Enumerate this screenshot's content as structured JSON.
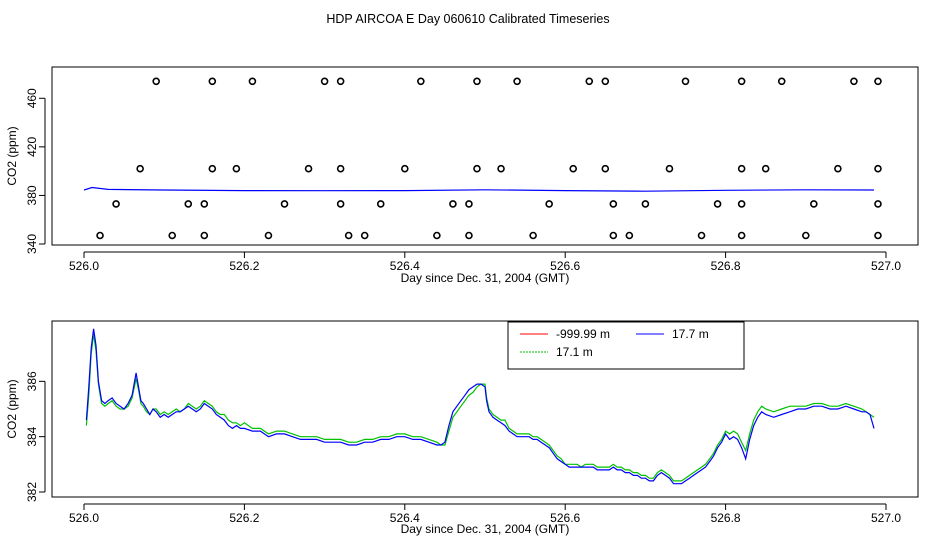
{
  "title": "HDP AIRCOA E  Day 060610  Calibrated Timeseries",
  "colors": {
    "red": "#ff0000",
    "green": "#00c000",
    "blue": "#0000ff",
    "axis": "#000000"
  },
  "chart_data": [
    {
      "type": "scatter",
      "xlabel": "Day since Dec. 31, 2004 (GMT)",
      "ylabel": "CO2 (ppm)",
      "xlim": [
        526.0,
        527.0
      ],
      "ylim": [
        340,
        480
      ],
      "xticks": [
        "526.0",
        "526.2",
        "526.4",
        "526.6",
        "526.8",
        "527.0"
      ],
      "yticks": [
        "340",
        "380",
        "420",
        "460"
      ],
      "grid": false,
      "series": [
        {
          "marker": "open-circle",
          "points": [
            [
              526.09,
              474
            ],
            [
              526.16,
              474
            ],
            [
              526.21,
              474
            ],
            [
              526.3,
              474
            ],
            [
              526.32,
              474
            ],
            [
              526.42,
              474
            ],
            [
              526.49,
              474
            ],
            [
              526.54,
              474
            ],
            [
              526.63,
              474
            ],
            [
              526.65,
              474
            ],
            [
              526.75,
              474
            ],
            [
              526.82,
              474
            ],
            [
              526.87,
              474
            ],
            [
              526.96,
              474
            ],
            [
              526.99,
              474
            ],
            [
              526.07,
              402
            ],
            [
              526.16,
              402
            ],
            [
              526.19,
              402
            ],
            [
              526.28,
              402
            ],
            [
              526.32,
              402
            ],
            [
              526.4,
              402
            ],
            [
              526.49,
              402
            ],
            [
              526.52,
              402
            ],
            [
              526.61,
              402
            ],
            [
              526.65,
              402
            ],
            [
              526.73,
              402
            ],
            [
              526.82,
              402
            ],
            [
              526.85,
              402
            ],
            [
              526.94,
              402
            ],
            [
              526.99,
              402
            ],
            [
              526.04,
              373
            ],
            [
              526.13,
              373
            ],
            [
              526.15,
              373
            ],
            [
              526.25,
              373
            ],
            [
              526.32,
              373
            ],
            [
              526.37,
              373
            ],
            [
              526.46,
              373
            ],
            [
              526.48,
              373
            ],
            [
              526.58,
              373
            ],
            [
              526.66,
              373
            ],
            [
              526.7,
              373
            ],
            [
              526.79,
              373
            ],
            [
              526.82,
              373
            ],
            [
              526.91,
              373
            ],
            [
              526.99,
              373
            ],
            [
              526.02,
              347
            ],
            [
              526.11,
              347
            ],
            [
              526.15,
              347
            ],
            [
              526.23,
              347
            ],
            [
              526.33,
              347
            ],
            [
              526.35,
              347
            ],
            [
              526.44,
              347
            ],
            [
              526.48,
              347
            ],
            [
              526.56,
              347
            ],
            [
              526.66,
              347
            ],
            [
              526.68,
              347
            ],
            [
              526.77,
              347
            ],
            [
              526.82,
              347
            ],
            [
              526.9,
              347
            ],
            [
              526.99,
              347
            ]
          ]
        },
        {
          "marker": "line",
          "color": "blue",
          "x": [
            526.0,
            526.01,
            526.03,
            526.1,
            526.2,
            526.3,
            526.4,
            526.5,
            526.6,
            526.7,
            526.8,
            526.9,
            526.985
          ],
          "y": [
            384.5,
            386.5,
            385.0,
            384.5,
            384.0,
            383.9,
            384.0,
            384.6,
            384.0,
            383.5,
            384.2,
            384.6,
            384.5
          ]
        }
      ]
    },
    {
      "type": "line",
      "xlabel": "Day since Dec. 31, 2004 (GMT)",
      "ylabel": "CO2 (ppm)",
      "xlim": [
        526.0,
        527.0
      ],
      "ylim": [
        382,
        388
      ],
      "xticks": [
        "526.0",
        "526.2",
        "526.4",
        "526.6",
        "526.8",
        "527.0"
      ],
      "yticks": [
        "382",
        "384",
        "386"
      ],
      "grid": false,
      "legend_position": "top-right",
      "legend": [
        {
          "label": "-999.99 m",
          "color": "red"
        },
        {
          "label": "17.7 m",
          "color": "blue"
        },
        {
          "label": "17.1 m",
          "color": "green"
        }
      ],
      "series": [
        {
          "name": "17.7 m",
          "color": "blue",
          "x": [
            526.003,
            526.006,
            526.009,
            526.012,
            526.015,
            526.018,
            526.022,
            526.026,
            526.03,
            526.035,
            526.04,
            526.045,
            526.05,
            526.055,
            526.06,
            526.065,
            526.068,
            526.071,
            526.074,
            526.078,
            526.082,
            526.086,
            526.09,
            526.095,
            526.1,
            526.105,
            526.11,
            526.115,
            526.12,
            526.125,
            526.13,
            526.135,
            526.14,
            526.145,
            526.15,
            526.155,
            526.16,
            526.165,
            526.17,
            526.175,
            526.18,
            526.185,
            526.19,
            526.195,
            526.2,
            526.21,
            526.22,
            526.23,
            526.24,
            526.25,
            526.26,
            526.27,
            526.28,
            526.29,
            526.3,
            526.31,
            526.32,
            526.33,
            526.34,
            526.35,
            526.36,
            526.37,
            526.38,
            526.39,
            526.4,
            526.41,
            526.42,
            526.43,
            526.44,
            526.445,
            526.45,
            526.455,
            526.46,
            526.465,
            526.47,
            526.475,
            526.48,
            526.485,
            526.49,
            526.495,
            526.5,
            526.502,
            526.505,
            526.51,
            526.515,
            526.52,
            526.525,
            526.53,
            526.535,
            526.54,
            526.545,
            526.55,
            526.555,
            526.56,
            526.565,
            526.57,
            526.575,
            526.58,
            526.585,
            526.59,
            526.595,
            526.6,
            526.605,
            526.61,
            526.615,
            526.62,
            526.625,
            526.63,
            526.635,
            526.64,
            526.645,
            526.65,
            526.655,
            526.66,
            526.665,
            526.67,
            526.675,
            526.68,
            526.685,
            526.69,
            526.695,
            526.7,
            526.705,
            526.71,
            526.715,
            526.72,
            526.725,
            526.73,
            526.735,
            526.74,
            526.745,
            526.75,
            526.755,
            526.76,
            526.765,
            526.77,
            526.775,
            526.78,
            526.785,
            526.79,
            526.795,
            526.8,
            526.805,
            526.81,
            526.815,
            526.82,
            526.825,
            526.83,
            526.835,
            526.84,
            526.845,
            526.85,
            526.86,
            526.87,
            526.88,
            526.89,
            526.9,
            526.91,
            526.92,
            526.93,
            526.94,
            526.95,
            526.96,
            526.97,
            526.975,
            526.98,
            526.985
          ],
          "y": [
            384.6,
            385.8,
            387.2,
            387.9,
            387.3,
            386.0,
            385.3,
            385.2,
            385.3,
            385.4,
            385.2,
            385.1,
            385.0,
            385.2,
            385.5,
            386.3,
            385.8,
            385.3,
            385.2,
            385.0,
            384.8,
            385.0,
            384.9,
            384.7,
            384.8,
            384.7,
            384.8,
            384.9,
            384.9,
            385.0,
            385.1,
            385.0,
            384.9,
            385.0,
            385.2,
            385.1,
            385.0,
            384.8,
            384.7,
            384.6,
            384.4,
            384.3,
            384.4,
            384.3,
            384.3,
            384.2,
            384.2,
            384.0,
            384.1,
            384.1,
            384.0,
            383.9,
            383.9,
            383.9,
            383.8,
            383.8,
            383.8,
            383.7,
            383.7,
            383.8,
            383.8,
            383.9,
            383.9,
            384.0,
            384.0,
            383.9,
            383.9,
            383.8,
            383.7,
            383.7,
            383.8,
            384.4,
            384.9,
            385.1,
            385.3,
            385.5,
            385.7,
            385.8,
            385.9,
            385.9,
            385.8,
            385.3,
            384.9,
            384.7,
            384.6,
            384.5,
            384.4,
            384.2,
            384.1,
            384.0,
            384.0,
            384.0,
            384.0,
            383.9,
            383.9,
            383.8,
            383.7,
            383.6,
            383.4,
            383.2,
            383.1,
            383.0,
            382.9,
            382.9,
            382.9,
            382.9,
            382.9,
            382.9,
            382.9,
            382.8,
            382.8,
            382.8,
            382.8,
            382.9,
            382.8,
            382.8,
            382.7,
            382.7,
            382.6,
            382.6,
            382.5,
            382.5,
            382.4,
            382.4,
            382.6,
            382.7,
            382.6,
            382.5,
            382.3,
            382.3,
            382.3,
            382.4,
            382.5,
            382.6,
            382.7,
            382.8,
            382.9,
            383.1,
            383.3,
            383.6,
            383.8,
            384.1,
            383.9,
            384.0,
            383.9,
            383.6,
            383.2,
            383.9,
            384.4,
            384.7,
            384.9,
            384.8,
            384.7,
            384.8,
            384.9,
            385.0,
            385.0,
            385.1,
            385.1,
            385.0,
            385.0,
            385.1,
            385.0,
            384.9,
            384.9,
            384.8,
            384.3
          ]
        },
        {
          "name": "17.1 m",
          "color": "green",
          "x": [
            526.003,
            526.006,
            526.009,
            526.012,
            526.015,
            526.018,
            526.022,
            526.026,
            526.03,
            526.035,
            526.04,
            526.045,
            526.05,
            526.055,
            526.06,
            526.065,
            526.068,
            526.071,
            526.074,
            526.078,
            526.082,
            526.086,
            526.09,
            526.095,
            526.1,
            526.105,
            526.11,
            526.115,
            526.12,
            526.125,
            526.13,
            526.135,
            526.14,
            526.145,
            526.15,
            526.155,
            526.16,
            526.165,
            526.17,
            526.175,
            526.18,
            526.185,
            526.19,
            526.195,
            526.2,
            526.21,
            526.22,
            526.23,
            526.24,
            526.25,
            526.26,
            526.27,
            526.28,
            526.29,
            526.3,
            526.31,
            526.32,
            526.33,
            526.34,
            526.35,
            526.36,
            526.37,
            526.38,
            526.39,
            526.4,
            526.41,
            526.42,
            526.43,
            526.44,
            526.445,
            526.45,
            526.455,
            526.46,
            526.465,
            526.47,
            526.475,
            526.48,
            526.485,
            526.49,
            526.495,
            526.5,
            526.502,
            526.505,
            526.51,
            526.515,
            526.52,
            526.525,
            526.53,
            526.535,
            526.54,
            526.545,
            526.55,
            526.555,
            526.56,
            526.565,
            526.57,
            526.575,
            526.58,
            526.585,
            526.59,
            526.595,
            526.6,
            526.605,
            526.61,
            526.615,
            526.62,
            526.625,
            526.63,
            526.635,
            526.64,
            526.645,
            526.65,
            526.655,
            526.66,
            526.665,
            526.67,
            526.675,
            526.68,
            526.685,
            526.69,
            526.695,
            526.7,
            526.705,
            526.71,
            526.715,
            526.72,
            526.725,
            526.73,
            526.735,
            526.74,
            526.745,
            526.75,
            526.755,
            526.76,
            526.765,
            526.77,
            526.775,
            526.78,
            526.785,
            526.79,
            526.795,
            526.8,
            526.805,
            526.81,
            526.815,
            526.82,
            526.825,
            526.83,
            526.835,
            526.84,
            526.845,
            526.85,
            526.86,
            526.87,
            526.88,
            526.89,
            526.9,
            526.91,
            526.92,
            526.93,
            526.94,
            526.95,
            526.96,
            526.97,
            526.975,
            526.98,
            526.985
          ],
          "y": [
            384.4,
            385.5,
            387.0,
            387.7,
            387.1,
            385.9,
            385.2,
            385.1,
            385.2,
            385.3,
            385.1,
            385.0,
            385.0,
            385.1,
            385.4,
            386.1,
            385.7,
            385.2,
            385.1,
            384.9,
            384.8,
            385.0,
            385.0,
            384.8,
            384.9,
            384.8,
            384.9,
            385.0,
            384.9,
            385.0,
            385.2,
            385.1,
            385.0,
            385.1,
            385.3,
            385.2,
            385.1,
            384.9,
            384.8,
            384.8,
            384.6,
            384.5,
            384.5,
            384.4,
            384.5,
            384.3,
            384.3,
            384.1,
            384.2,
            384.2,
            384.1,
            384.0,
            384.0,
            384.0,
            383.9,
            383.9,
            383.9,
            383.8,
            383.8,
            383.9,
            383.9,
            384.0,
            384.0,
            384.1,
            384.1,
            384.0,
            384.0,
            383.9,
            383.8,
            383.7,
            383.7,
            384.2,
            384.7,
            384.9,
            385.1,
            385.3,
            385.5,
            385.6,
            385.8,
            385.9,
            385.9,
            385.4,
            385.0,
            384.8,
            384.7,
            384.6,
            384.6,
            384.3,
            384.2,
            384.1,
            384.1,
            384.1,
            384.1,
            384.0,
            384.0,
            383.9,
            383.8,
            383.7,
            383.5,
            383.3,
            383.2,
            383.0,
            383.0,
            383.0,
            383.0,
            382.9,
            383.0,
            383.0,
            383.0,
            382.9,
            382.9,
            382.9,
            382.9,
            383.0,
            382.9,
            382.9,
            382.8,
            382.8,
            382.7,
            382.7,
            382.6,
            382.6,
            382.5,
            382.5,
            382.7,
            382.8,
            382.7,
            382.6,
            382.4,
            382.4,
            382.4,
            382.5,
            382.6,
            382.7,
            382.8,
            382.9,
            383.0,
            383.2,
            383.4,
            383.7,
            383.9,
            384.2,
            384.1,
            384.2,
            384.1,
            383.8,
            383.5,
            384.1,
            384.6,
            384.9,
            385.1,
            385.0,
            384.9,
            385.0,
            385.1,
            385.1,
            385.1,
            385.2,
            385.2,
            385.1,
            385.1,
            385.2,
            385.1,
            385.0,
            384.9,
            384.8,
            384.7
          ]
        }
      ]
    }
  ]
}
